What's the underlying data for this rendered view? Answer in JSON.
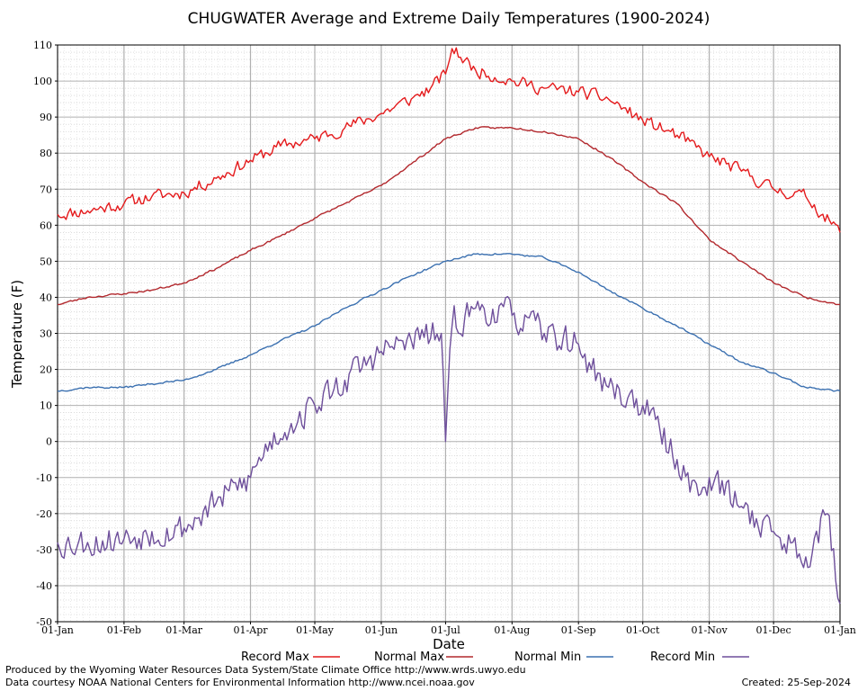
{
  "chart_data": {
    "type": "line",
    "title": "CHUGWATER Average and Extreme Daily Temperatures (1900-2024)",
    "xlabel": "Date",
    "ylabel": "Temperature (F)",
    "ylim": [
      -50,
      110
    ],
    "yticks": [
      -50,
      -40,
      -30,
      -20,
      -10,
      0,
      10,
      20,
      30,
      40,
      50,
      60,
      70,
      80,
      90,
      100,
      110
    ],
    "xlim_day": [
      1,
      366
    ],
    "xticks": [
      {
        "label": "01-Jan",
        "day": 1
      },
      {
        "label": "01-Feb",
        "day": 32
      },
      {
        "label": "01-Mar",
        "day": 60
      },
      {
        "label": "01-Apr",
        "day": 91
      },
      {
        "label": "01-May",
        "day": 121
      },
      {
        "label": "01-Jun",
        "day": 152
      },
      {
        "label": "01-Jul",
        "day": 182
      },
      {
        "label": "01-Aug",
        "day": 213
      },
      {
        "label": "01-Sep",
        "day": 244
      },
      {
        "label": "01-Oct",
        "day": 274
      },
      {
        "label": "01-Nov",
        "day": 305
      },
      {
        "label": "01-Dec",
        "day": 335
      },
      {
        "label": "01-Jan",
        "day": 366
      }
    ],
    "grid": true,
    "legend_position": "bottom",
    "series": [
      {
        "name": "Record Max",
        "color": "#e41a1c",
        "noise": 2.5,
        "seed": 11,
        "x": [
          1,
          15,
          32,
          45,
          60,
          75,
          91,
          105,
          121,
          135,
          152,
          166,
          175,
          182,
          185,
          196,
          213,
          228,
          244,
          258,
          274,
          290,
          305,
          320,
          335,
          350,
          366
        ],
        "y": [
          63,
          64,
          66,
          68,
          69,
          73,
          78,
          82,
          84,
          87,
          91,
          95,
          98,
          102,
          109,
          103,
          100,
          98,
          97,
          95,
          89,
          85,
          79,
          75,
          70,
          68,
          58
        ]
      },
      {
        "name": "Normal Max",
        "color": "#b2282d",
        "noise": 0.4,
        "seed": 23,
        "x": [
          1,
          15,
          32,
          45,
          60,
          75,
          91,
          105,
          121,
          135,
          152,
          166,
          182,
          196,
          213,
          228,
          244,
          258,
          274,
          290,
          305,
          320,
          335,
          350,
          366
        ],
        "y": [
          38,
          40,
          41,
          42,
          44,
          48,
          53,
          57,
          62,
          66,
          71,
          77,
          84,
          87,
          87,
          86,
          84,
          79,
          72,
          66,
          56,
          50,
          44,
          40,
          38
        ]
      },
      {
        "name": "Normal Min",
        "color": "#3b70b0",
        "noise": 0.4,
        "seed": 37,
        "x": [
          1,
          15,
          32,
          45,
          60,
          75,
          91,
          105,
          121,
          135,
          152,
          166,
          182,
          196,
          213,
          228,
          244,
          258,
          274,
          290,
          305,
          320,
          335,
          350,
          366
        ],
        "y": [
          14,
          15,
          15,
          16,
          17,
          20,
          24,
          28,
          32,
          37,
          42,
          46,
          50,
          52,
          52,
          51,
          47,
          42,
          37,
          32,
          27,
          22,
          19,
          15,
          14
        ]
      },
      {
        "name": "Record Min",
        "color": "#6e4f9b",
        "noise": 6,
        "seed": 53,
        "x": [
          1,
          15,
          32,
          45,
          60,
          75,
          91,
          100,
          110,
          121,
          135,
          152,
          166,
          180,
          182,
          185,
          196,
          213,
          228,
          244,
          250,
          258,
          274,
          290,
          300,
          305,
          320,
          335,
          350,
          360,
          366
        ],
        "y": [
          -28,
          -28,
          -27,
          -25,
          -24,
          -17,
          -10,
          0,
          5,
          10,
          17,
          25,
          28,
          30,
          0,
          32,
          37,
          35,
          30,
          27,
          20,
          15,
          10,
          -5,
          -15,
          -10,
          -18,
          -25,
          -32,
          -20,
          -45
        ]
      }
    ]
  },
  "footer": {
    "produced_by": "Produced by the Wyoming Water Resources Data System/State Climate Office http://www.wrds.uwyo.edu",
    "data_courtesy": "Data courtesy NOAA National Centers for Environmental Information http://www.ncei.noaa.gov",
    "created": "Created:  25-Sep-2024"
  }
}
